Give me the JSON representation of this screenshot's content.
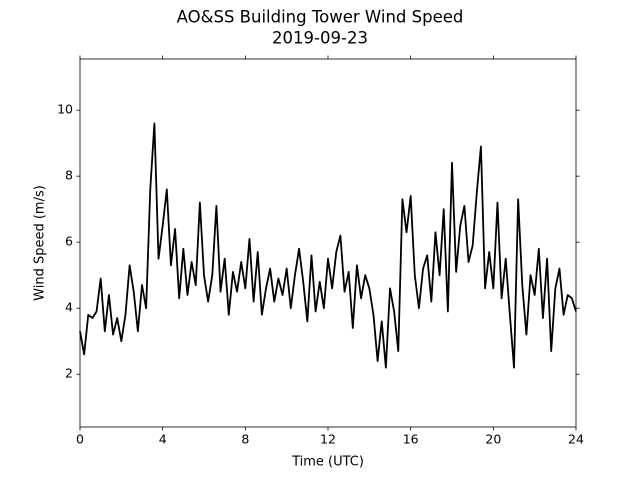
{
  "chart_data": {
    "type": "line",
    "title": "AO&SS Building Tower Wind Speed",
    "subtitle": "2019-09-23",
    "x_label": "Time (UTC)",
    "y_label": "Wind Speed (m/s)",
    "color": "#000000",
    "xlim": [
      0,
      24
    ],
    "xticks": [
      0,
      4,
      8,
      12,
      16,
      20,
      24
    ],
    "ylim": [
      0.4,
      11.55
    ],
    "yticks": [
      2,
      4,
      6,
      8,
      10
    ],
    "x": [
      0,
      0.2,
      0.4,
      0.6,
      0.8,
      1,
      1.2,
      1.4,
      1.6,
      1.8,
      2,
      2.2,
      2.4,
      2.6,
      2.8,
      3,
      3.2,
      3.4,
      3.6,
      3.8,
      4,
      4.2,
      4.4,
      4.6,
      4.8,
      5,
      5.2,
      5.4,
      5.6,
      5.8,
      6,
      6.2,
      6.4,
      6.6,
      6.8,
      7,
      7.2,
      7.4,
      7.6,
      7.8,
      8,
      8.2,
      8.4,
      8.6,
      8.8,
      9,
      9.2,
      9.4,
      9.6,
      9.8,
      10,
      10.2,
      10.4,
      10.6,
      10.8,
      11,
      11.2,
      11.4,
      11.6,
      11.8,
      12,
      12.2,
      12.4,
      12.6,
      12.8,
      13,
      13.2,
      13.4,
      13.6,
      13.8,
      14,
      14.2,
      14.4,
      14.6,
      14.8,
      15,
      15.2,
      15.4,
      15.6,
      15.8,
      16,
      16.2,
      16.4,
      16.6,
      16.8,
      17,
      17.2,
      17.4,
      17.6,
      17.8,
      18,
      18.2,
      18.4,
      18.6,
      18.8,
      19,
      19.2,
      19.4,
      19.6,
      19.8,
      20,
      20.2,
      20.4,
      20.6,
      20.8,
      21,
      21.2,
      21.4,
      21.6,
      21.8,
      22,
      22.2,
      22.4,
      22.6,
      22.8,
      23,
      23.2,
      23.4,
      23.6,
      23.8,
      24
    ],
    "values": [
      3.3,
      2.6,
      3.8,
      3.7,
      3.9,
      4.9,
      3.3,
      4.4,
      3.2,
      3.7,
      3.0,
      3.8,
      5.3,
      4.5,
      3.3,
      4.7,
      4.0,
      7.6,
      9.6,
      5.5,
      6.5,
      7.6,
      5.3,
      6.4,
      4.3,
      5.8,
      4.4,
      5.4,
      4.7,
      7.2,
      5.0,
      4.2,
      5.0,
      7.1,
      4.5,
      5.5,
      3.8,
      5.1,
      4.5,
      5.4,
      4.6,
      6.1,
      4.2,
      5.7,
      3.8,
      4.6,
      5.2,
      4.2,
      4.9,
      4.4,
      5.2,
      4.0,
      5.0,
      5.8,
      4.8,
      3.6,
      5.6,
      3.9,
      4.8,
      4.0,
      5.5,
      4.6,
      5.7,
      6.2,
      4.5,
      5.1,
      3.4,
      5.3,
      4.3,
      5.0,
      4.6,
      3.8,
      2.4,
      3.6,
      2.2,
      4.6,
      3.9,
      2.7,
      7.3,
      6.3,
      7.4,
      5.0,
      4.0,
      5.2,
      5.6,
      4.2,
      6.3,
      5.0,
      7.0,
      3.9,
      8.4,
      5.1,
      6.5,
      7.1,
      5.4,
      5.9,
      7.5,
      8.9,
      4.6,
      5.7,
      4.6,
      7.2,
      4.3,
      5.5,
      3.8,
      2.2,
      7.3,
      4.7,
      3.2,
      5.0,
      4.4,
      5.8,
      3.7,
      5.5,
      2.7,
      4.6,
      5.2,
      3.8,
      4.4,
      4.3,
      3.9
    ]
  }
}
